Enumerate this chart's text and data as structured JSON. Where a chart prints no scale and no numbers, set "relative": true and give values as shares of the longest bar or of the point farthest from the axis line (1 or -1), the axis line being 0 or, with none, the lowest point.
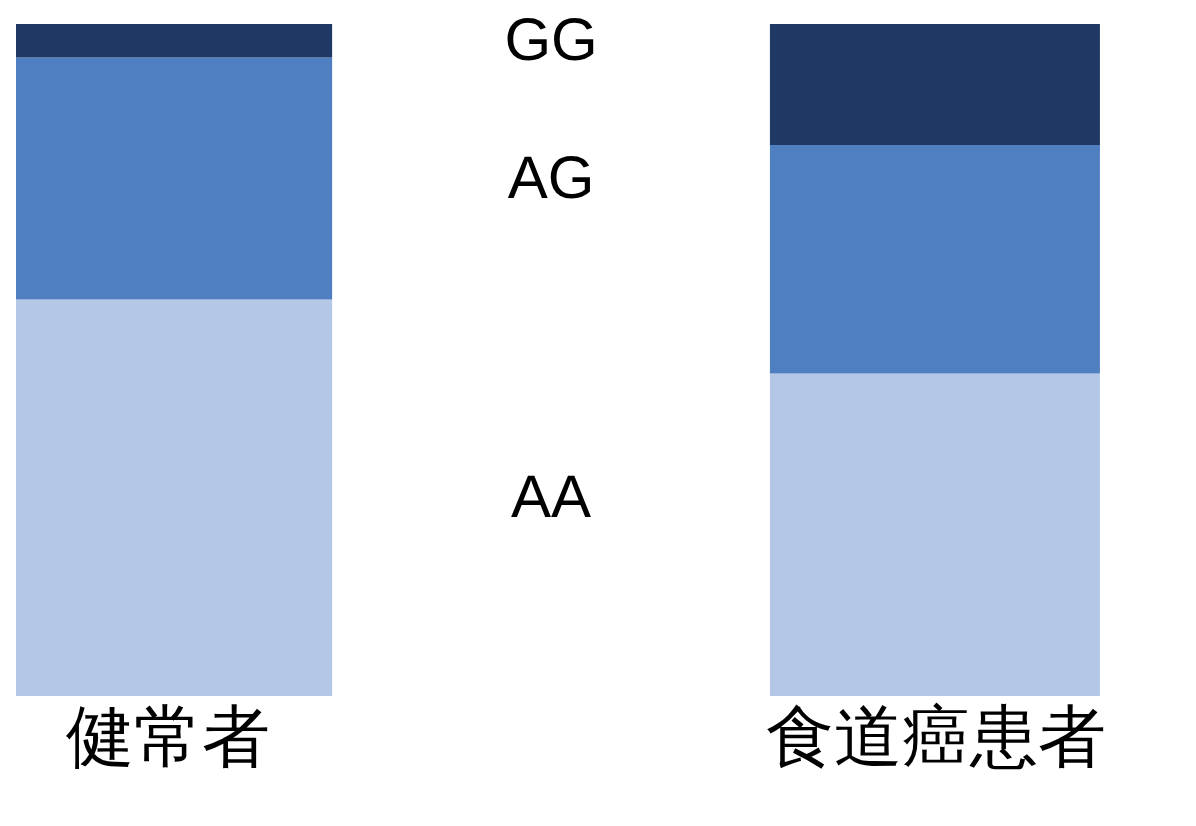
{
  "chart_data": {
    "type": "bar",
    "stacked": true,
    "relative": true,
    "categories": [
      "健常者",
      "食道癌患者"
    ],
    "series": [
      {
        "name": "AA",
        "color": "#b4c7e7",
        "values": [
          0.59,
          0.48
        ]
      },
      {
        "name": "AG",
        "color": "#4f7fc0",
        "values": [
          0.36,
          0.34
        ]
      },
      {
        "name": "GG",
        "color": "#1f3864",
        "values": [
          0.05,
          0.18
        ]
      }
    ]
  }
}
